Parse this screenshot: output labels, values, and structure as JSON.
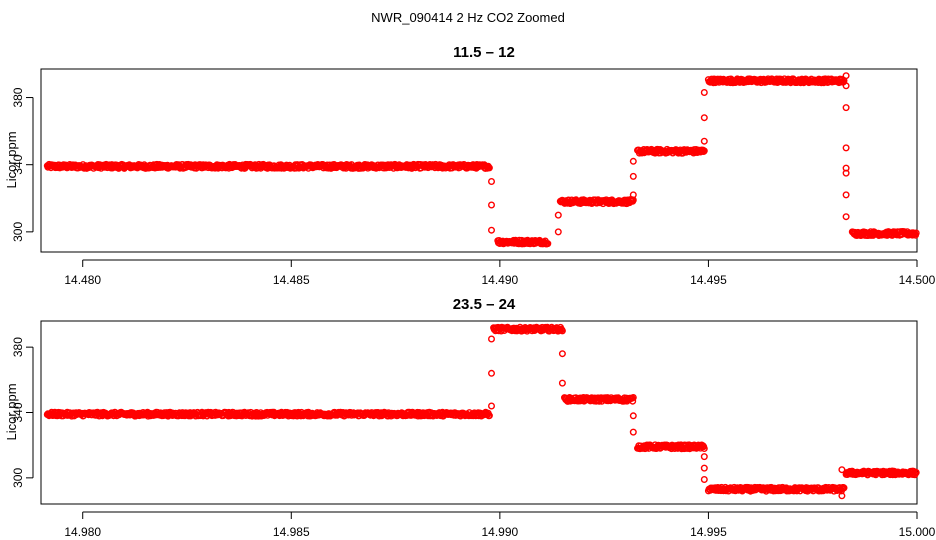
{
  "page_title": "NWR_090414  2 Hz CO2 Zoomed",
  "colors": {
    "points": "#ff0000",
    "axis": "#000000"
  },
  "chart_data": [
    {
      "type": "scatter",
      "title": "11.5 – 12",
      "xlabel": "",
      "ylabel": "Licor ppm",
      "xlim": [
        14.479,
        14.5
      ],
      "ylim": [
        288,
        397
      ],
      "xticks": [
        14.48,
        14.485,
        14.49,
        14.495,
        14.5
      ],
      "xtick_labels": [
        "14.480",
        "14.485",
        "14.490",
        "14.495",
        "14.500"
      ],
      "yticks": [
        300,
        340,
        380
      ],
      "ytick_labels": [
        "300",
        "340",
        "380"
      ],
      "point_style": "open-circle",
      "segments": [
        {
          "x0": 14.47915,
          "x1": 14.48975,
          "y": 339
        },
        {
          "x0": 14.48995,
          "x1": 14.49115,
          "y": 294
        },
        {
          "x0": 14.49145,
          "x1": 14.4932,
          "y": 318
        },
        {
          "x0": 14.4933,
          "x1": 14.4949,
          "y": 348
        },
        {
          "x0": 14.495,
          "x1": 14.49825,
          "y": 390
        },
        {
          "x0": 14.49845,
          "x1": 14.49998,
          "y": 299
        }
      ],
      "transitions": [
        {
          "x": 14.4898,
          "y": [
            330,
            316,
            301
          ]
        },
        {
          "x": 14.4914,
          "y": [
            300,
            310
          ]
        },
        {
          "x": 14.4932,
          "y": [
            322,
            333,
            342
          ]
        },
        {
          "x": 14.4949,
          "y": [
            354,
            368,
            383
          ]
        },
        {
          "x": 14.4983,
          "y": [
            393,
            387,
            374,
            350,
            338,
            335,
            322,
            309
          ]
        }
      ]
    },
    {
      "type": "scatter",
      "title": "23.5 – 24",
      "xlabel": "",
      "ylabel": "Licor ppm",
      "xlim": [
        14.979,
        15.0
      ],
      "ylim": [
        284,
        396
      ],
      "xticks": [
        14.98,
        14.985,
        14.99,
        14.995,
        15.0
      ],
      "xtick_labels": [
        "14.980",
        "14.985",
        "14.990",
        "14.995",
        "15.000"
      ],
      "yticks": [
        300,
        340,
        380
      ],
      "ytick_labels": [
        "300",
        "340",
        "380"
      ],
      "point_style": "open-circle",
      "segments": [
        {
          "x0": 14.97915,
          "x1": 14.98975,
          "y": 339
        },
        {
          "x0": 14.98985,
          "x1": 14.9915,
          "y": 391
        },
        {
          "x0": 14.99155,
          "x1": 14.9932,
          "y": 348
        },
        {
          "x0": 14.9933,
          "x1": 14.9949,
          "y": 319
        },
        {
          "x0": 14.995,
          "x1": 14.99825,
          "y": 293
        },
        {
          "x0": 14.9983,
          "x1": 14.99998,
          "y": 303
        }
      ],
      "transitions": [
        {
          "x": 14.9898,
          "y": [
            344,
            364,
            385
          ]
        },
        {
          "x": 14.9915,
          "y": [
            376,
            358
          ]
        },
        {
          "x": 14.9932,
          "y": [
            338,
            328
          ]
        },
        {
          "x": 14.9949,
          "y": [
            313,
            306,
            299
          ]
        },
        {
          "x": 14.9982,
          "y": [
            289,
            305
          ]
        }
      ]
    }
  ]
}
